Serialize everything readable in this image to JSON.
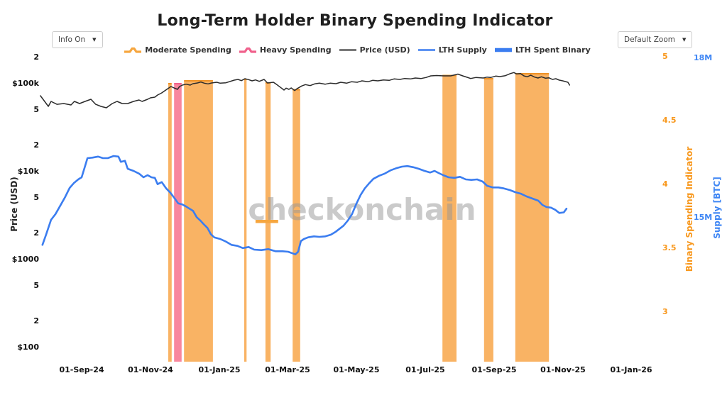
{
  "header": {
    "title": "Long-Term Holder Binary Spending Indicator",
    "info_dropdown": {
      "label": "Info On",
      "caret": "▼"
    },
    "zoom_dropdown": {
      "label": "Default Zoom",
      "caret": "▼"
    }
  },
  "watermark": "checkonchain",
  "legend": [
    {
      "label": "Moderate Spending",
      "color": "#F6A63F"
    },
    {
      "label": "Heavy Spending",
      "color": "#F0618C"
    },
    {
      "label": "Price (USD)",
      "color": "#2B2B2B"
    },
    {
      "label": "LTH Supply",
      "color": "#3B7DF0"
    },
    {
      "label": "LTH Spent Binary",
      "color": "#3B7DF0"
    }
  ],
  "colors": {
    "moderate_band": "#F9B364",
    "moderate_edge": "#EE9125",
    "heavy_band": "#F8879E",
    "heavy_edge": "#F0618C",
    "price_line": "#2B2B2B",
    "supply_line": "#3B7DF0",
    "indicator_axis": "#F8981D",
    "supply_axis": "#3D85F4",
    "watermark": "#969696"
  },
  "axes": {
    "x": {
      "ticks": [
        {
          "label": "01-Sep-24",
          "m": 0
        },
        {
          "label": "01-Nov-24",
          "m": 2
        },
        {
          "label": "01-Jan-25",
          "m": 4
        },
        {
          "label": "01-Mar-25",
          "m": 6
        },
        {
          "label": "01-May-25",
          "m": 8
        },
        {
          "label": "01-Jul-25",
          "m": 10
        },
        {
          "label": "01-Sep-25",
          "m": 12
        },
        {
          "label": "01-Nov-25",
          "m": 14
        },
        {
          "label": "01-Jan-26",
          "m": 16
        }
      ]
    },
    "price": {
      "title": "Price (USD)",
      "ticks": [
        {
          "label": "2",
          "usd": 200000
        },
        {
          "label": "$100k",
          "usd": 100000
        },
        {
          "label": "5",
          "usd": 50000
        },
        {
          "label": "2",
          "usd": 20000
        },
        {
          "label": "$10k",
          "usd": 10000
        },
        {
          "label": "5",
          "usd": 5000
        },
        {
          "label": "2",
          "usd": 2000
        },
        {
          "label": "$1000",
          "usd": 1000
        },
        {
          "label": "5",
          "usd": 500
        },
        {
          "label": "2",
          "usd": 200
        },
        {
          "label": "$100",
          "usd": 100
        }
      ]
    },
    "indicator": {
      "title": "Binary Spending Indicator",
      "ticks": [
        {
          "label": "5",
          "value": 5
        },
        {
          "label": "4.5",
          "value": 4.5
        },
        {
          "label": "4",
          "value": 4
        },
        {
          "label": "3.5",
          "value": 3.5
        },
        {
          "label": "3",
          "value": 3
        }
      ]
    },
    "supply": {
      "title": "Supply [BTC]",
      "ticks": [
        {
          "label": "18M",
          "value": 18
        },
        {
          "label": "15M",
          "value": 15
        }
      ]
    }
  },
  "chart_data": {
    "type": "line",
    "title": "Long-Term Holder Binary Spending Indicator",
    "x_unit": "months since 01-Sep-2024",
    "legend_entries": [
      "Moderate Spending",
      "Heavy Spending",
      "Price (USD)",
      "LTH Supply",
      "LTH Spent Binary"
    ],
    "y_axes": {
      "price_usd": {
        "label": "Price (USD)",
        "scale": "log",
        "visible_range_usd": [
          100,
          200000
        ]
      },
      "indicator": {
        "label": "Binary Spending Indicator",
        "range": [
          3,
          5
        ]
      },
      "supply_btc": {
        "label": "Supply [BTC]",
        "unit": "million BTC",
        "tick_values": [
          15,
          18
        ]
      }
    },
    "series": [
      {
        "name": "Price (USD)",
        "axis": "price_usd",
        "unit": "thousand USD",
        "color": "#2B2B2B",
        "points": [
          [
            -1.2,
            72.9
          ],
          [
            -0.97,
            55.2
          ],
          [
            -0.89,
            62.9
          ],
          [
            -0.72,
            58.3
          ],
          [
            -0.52,
            59.5
          ],
          [
            -0.31,
            57.3
          ],
          [
            -0.21,
            62.9
          ],
          [
            -0.06,
            59.5
          ],
          [
            0.1,
            62.9
          ],
          [
            0.27,
            66.5
          ],
          [
            0.41,
            58.3
          ],
          [
            0.56,
            55.2
          ],
          [
            0.72,
            53.2
          ],
          [
            0.89,
            59.5
          ],
          [
            1.03,
            62.9
          ],
          [
            1.18,
            59.5
          ],
          [
            1.34,
            59.5
          ],
          [
            1.51,
            62.9
          ],
          [
            1.67,
            65.2
          ],
          [
            1.76,
            62.9
          ],
          [
            1.92,
            66.5
          ],
          [
            2.0,
            69.0
          ],
          [
            2.13,
            70.3
          ],
          [
            2.21,
            74.3
          ],
          [
            2.33,
            78.6
          ],
          [
            2.42,
            83.1
          ],
          [
            2.54,
            89.5
          ],
          [
            2.6,
            92.8
          ],
          [
            2.69,
            89.5
          ],
          [
            2.79,
            86.2
          ],
          [
            2.85,
            92.8
          ],
          [
            2.93,
            96.4
          ],
          [
            3.04,
            98.7
          ],
          [
            3.16,
            96.4
          ],
          [
            3.24,
            100.0
          ],
          [
            3.37,
            101.9
          ],
          [
            3.47,
            104.4
          ],
          [
            3.57,
            101.3
          ],
          [
            3.68,
            99.4
          ],
          [
            3.78,
            101.9
          ],
          [
            3.93,
            103.8
          ],
          [
            4.03,
            101.3
          ],
          [
            4.2,
            102.5
          ],
          [
            4.44,
            109.7
          ],
          [
            4.55,
            111.8
          ],
          [
            4.65,
            108.3
          ],
          [
            4.75,
            113.9
          ],
          [
            4.86,
            111.2
          ],
          [
            4.96,
            107.7
          ],
          [
            5.06,
            110.3
          ],
          [
            5.17,
            106.3
          ],
          [
            5.31,
            111.8
          ],
          [
            5.41,
            101.9
          ],
          [
            5.58,
            103.8
          ],
          [
            5.68,
            97.6
          ],
          [
            5.79,
            90.6
          ],
          [
            5.89,
            84.6
          ],
          [
            5.95,
            89.0
          ],
          [
            6.03,
            86.2
          ],
          [
            6.1,
            89.5
          ],
          [
            6.2,
            83.5
          ],
          [
            6.26,
            87.3
          ],
          [
            6.4,
            94.1
          ],
          [
            6.51,
            97.6
          ],
          [
            6.65,
            95.1
          ],
          [
            6.78,
            99.4
          ],
          [
            6.92,
            101.3
          ],
          [
            7.09,
            98.7
          ],
          [
            7.23,
            101.3
          ],
          [
            7.4,
            100.0
          ],
          [
            7.54,
            103.8
          ],
          [
            7.71,
            101.3
          ],
          [
            7.85,
            105.1
          ],
          [
            8.02,
            103.8
          ],
          [
            8.16,
            107.7
          ],
          [
            8.33,
            105.1
          ],
          [
            8.47,
            109.1
          ],
          [
            8.62,
            107.7
          ],
          [
            8.78,
            110.3
          ],
          [
            8.95,
            109.1
          ],
          [
            9.09,
            113.2
          ],
          [
            9.26,
            111.8
          ],
          [
            9.4,
            114.5
          ],
          [
            9.57,
            113.2
          ],
          [
            9.71,
            116.0
          ],
          [
            9.88,
            114.5
          ],
          [
            10.02,
            117.5
          ],
          [
            10.16,
            122.6
          ],
          [
            10.33,
            123.8
          ],
          [
            10.54,
            122.6
          ],
          [
            10.74,
            122.6
          ],
          [
            10.95,
            128.5
          ],
          [
            11.09,
            122.6
          ],
          [
            11.22,
            118.2
          ],
          [
            11.32,
            114.5
          ],
          [
            11.47,
            117.5
          ],
          [
            11.69,
            116.0
          ],
          [
            11.8,
            118.8
          ],
          [
            11.9,
            117.5
          ],
          [
            12.05,
            122.0
          ],
          [
            12.17,
            120.4
          ],
          [
            12.33,
            123.3
          ],
          [
            12.48,
            130.4
          ],
          [
            12.58,
            133.8
          ],
          [
            12.66,
            129.0
          ],
          [
            12.77,
            130.4
          ],
          [
            12.87,
            122.6
          ],
          [
            12.97,
            119.7
          ],
          [
            13.07,
            124.9
          ],
          [
            13.18,
            118.8
          ],
          [
            13.28,
            116.0
          ],
          [
            13.38,
            119.7
          ],
          [
            13.5,
            115.4
          ],
          [
            13.6,
            116.6
          ],
          [
            13.7,
            111.8
          ],
          [
            13.8,
            113.9
          ],
          [
            13.9,
            109.7
          ],
          [
            14.0,
            107.7
          ],
          [
            14.15,
            103.8
          ],
          [
            14.2,
            96.4
          ]
        ]
      },
      {
        "name": "LTH Supply",
        "axis": "supply_btc",
        "unit": "million BTC",
        "color": "#3B7DF0",
        "points": [
          [
            -1.14,
            14.49
          ],
          [
            -1.03,
            14.69
          ],
          [
            -0.89,
            14.96
          ],
          [
            -0.76,
            15.07
          ],
          [
            -0.62,
            15.23
          ],
          [
            -0.48,
            15.39
          ],
          [
            -0.35,
            15.56
          ],
          [
            -0.23,
            15.65
          ],
          [
            -0.1,
            15.72
          ],
          [
            0.0,
            15.76
          ],
          [
            0.08,
            15.93
          ],
          [
            0.17,
            16.12
          ],
          [
            0.31,
            16.13
          ],
          [
            0.48,
            16.15
          ],
          [
            0.62,
            16.12
          ],
          [
            0.76,
            16.12
          ],
          [
            0.93,
            16.16
          ],
          [
            1.07,
            16.15
          ],
          [
            1.14,
            16.05
          ],
          [
            1.26,
            16.07
          ],
          [
            1.34,
            15.92
          ],
          [
            1.51,
            15.88
          ],
          [
            1.67,
            15.83
          ],
          [
            1.8,
            15.76
          ],
          [
            1.92,
            15.8
          ],
          [
            2.03,
            15.76
          ],
          [
            2.13,
            15.75
          ],
          [
            2.21,
            15.63
          ],
          [
            2.33,
            15.67
          ],
          [
            2.46,
            15.55
          ],
          [
            2.58,
            15.47
          ],
          [
            2.71,
            15.36
          ],
          [
            2.81,
            15.27
          ],
          [
            2.93,
            15.25
          ],
          [
            3.04,
            15.21
          ],
          [
            3.14,
            15.17
          ],
          [
            3.24,
            15.13
          ],
          [
            3.35,
            15.01
          ],
          [
            3.45,
            14.95
          ],
          [
            3.55,
            14.88
          ],
          [
            3.66,
            14.81
          ],
          [
            3.76,
            14.69
          ],
          [
            3.86,
            14.63
          ],
          [
            4.03,
            14.6
          ],
          [
            4.2,
            14.55
          ],
          [
            4.36,
            14.49
          ],
          [
            4.53,
            14.47
          ],
          [
            4.69,
            14.43
          ],
          [
            4.86,
            14.45
          ],
          [
            5.02,
            14.4
          ],
          [
            5.23,
            14.39
          ],
          [
            5.43,
            14.41
          ],
          [
            5.64,
            14.37
          ],
          [
            5.85,
            14.37
          ],
          [
            6.01,
            14.36
          ],
          [
            6.14,
            14.33
          ],
          [
            6.22,
            14.31
          ],
          [
            6.3,
            14.36
          ],
          [
            6.38,
            14.56
          ],
          [
            6.47,
            14.6
          ],
          [
            6.59,
            14.63
          ],
          [
            6.76,
            14.65
          ],
          [
            6.92,
            14.64
          ],
          [
            7.09,
            14.65
          ],
          [
            7.25,
            14.68
          ],
          [
            7.38,
            14.73
          ],
          [
            7.5,
            14.79
          ],
          [
            7.62,
            14.85
          ],
          [
            7.75,
            14.95
          ],
          [
            7.87,
            15.07
          ],
          [
            8.0,
            15.27
          ],
          [
            8.12,
            15.43
          ],
          [
            8.24,
            15.55
          ],
          [
            8.37,
            15.65
          ],
          [
            8.49,
            15.73
          ],
          [
            8.66,
            15.79
          ],
          [
            8.82,
            15.83
          ],
          [
            8.99,
            15.89
          ],
          [
            9.15,
            15.93
          ],
          [
            9.32,
            15.96
          ],
          [
            9.48,
            15.97
          ],
          [
            9.65,
            15.95
          ],
          [
            9.81,
            15.92
          ],
          [
            9.98,
            15.88
          ],
          [
            10.14,
            15.85
          ],
          [
            10.27,
            15.88
          ],
          [
            10.39,
            15.84
          ],
          [
            10.52,
            15.8
          ],
          [
            10.68,
            15.76
          ],
          [
            10.85,
            15.75
          ],
          [
            11.01,
            15.77
          ],
          [
            11.18,
            15.72
          ],
          [
            11.34,
            15.71
          ],
          [
            11.51,
            15.72
          ],
          [
            11.67,
            15.68
          ],
          [
            11.8,
            15.6
          ],
          [
            11.96,
            15.57
          ],
          [
            12.13,
            15.57
          ],
          [
            12.29,
            15.55
          ],
          [
            12.46,
            15.52
          ],
          [
            12.62,
            15.48
          ],
          [
            12.79,
            15.45
          ],
          [
            12.95,
            15.4
          ],
          [
            13.12,
            15.36
          ],
          [
            13.29,
            15.32
          ],
          [
            13.41,
            15.24
          ],
          [
            13.53,
            15.2
          ],
          [
            13.66,
            15.19
          ],
          [
            13.78,
            15.15
          ],
          [
            13.9,
            15.09
          ],
          [
            14.03,
            15.1
          ],
          [
            14.11,
            15.17
          ]
        ]
      }
    ],
    "bands": [
      {
        "type": "moderate",
        "from_m": 2.52,
        "to_m": 2.62,
        "top_price_kusd": 100.0
      },
      {
        "type": "heavy",
        "from_m": 2.69,
        "to_m": 2.91,
        "top_price_kusd": 100.0
      },
      {
        "type": "moderate",
        "from_m": 2.98,
        "to_m": 3.82,
        "top_price_kusd": 107.7
      },
      {
        "type": "moderate",
        "from_m": 4.73,
        "to_m": 4.8,
        "top_price_kusd": 111.8
      },
      {
        "type": "moderate",
        "from_m": 5.35,
        "to_m": 5.5,
        "top_price_kusd": 101.9
      },
      {
        "type": "moderate",
        "from_m": 6.14,
        "to_m": 6.36,
        "top_price_kusd": 85.4
      },
      {
        "type": "moderate",
        "from_m": 10.5,
        "to_m": 10.91,
        "top_price_kusd": 123.8
      },
      {
        "type": "moderate",
        "from_m": 11.71,
        "to_m": 11.98,
        "top_price_kusd": 113.9
      },
      {
        "type": "moderate",
        "from_m": 12.62,
        "to_m": 13.6,
        "top_price_kusd": 129.7
      }
    ],
    "moderate_marker": {
      "from_m": 5.06,
      "to_m": 5.72,
      "indicator_value": 3.71
    }
  }
}
